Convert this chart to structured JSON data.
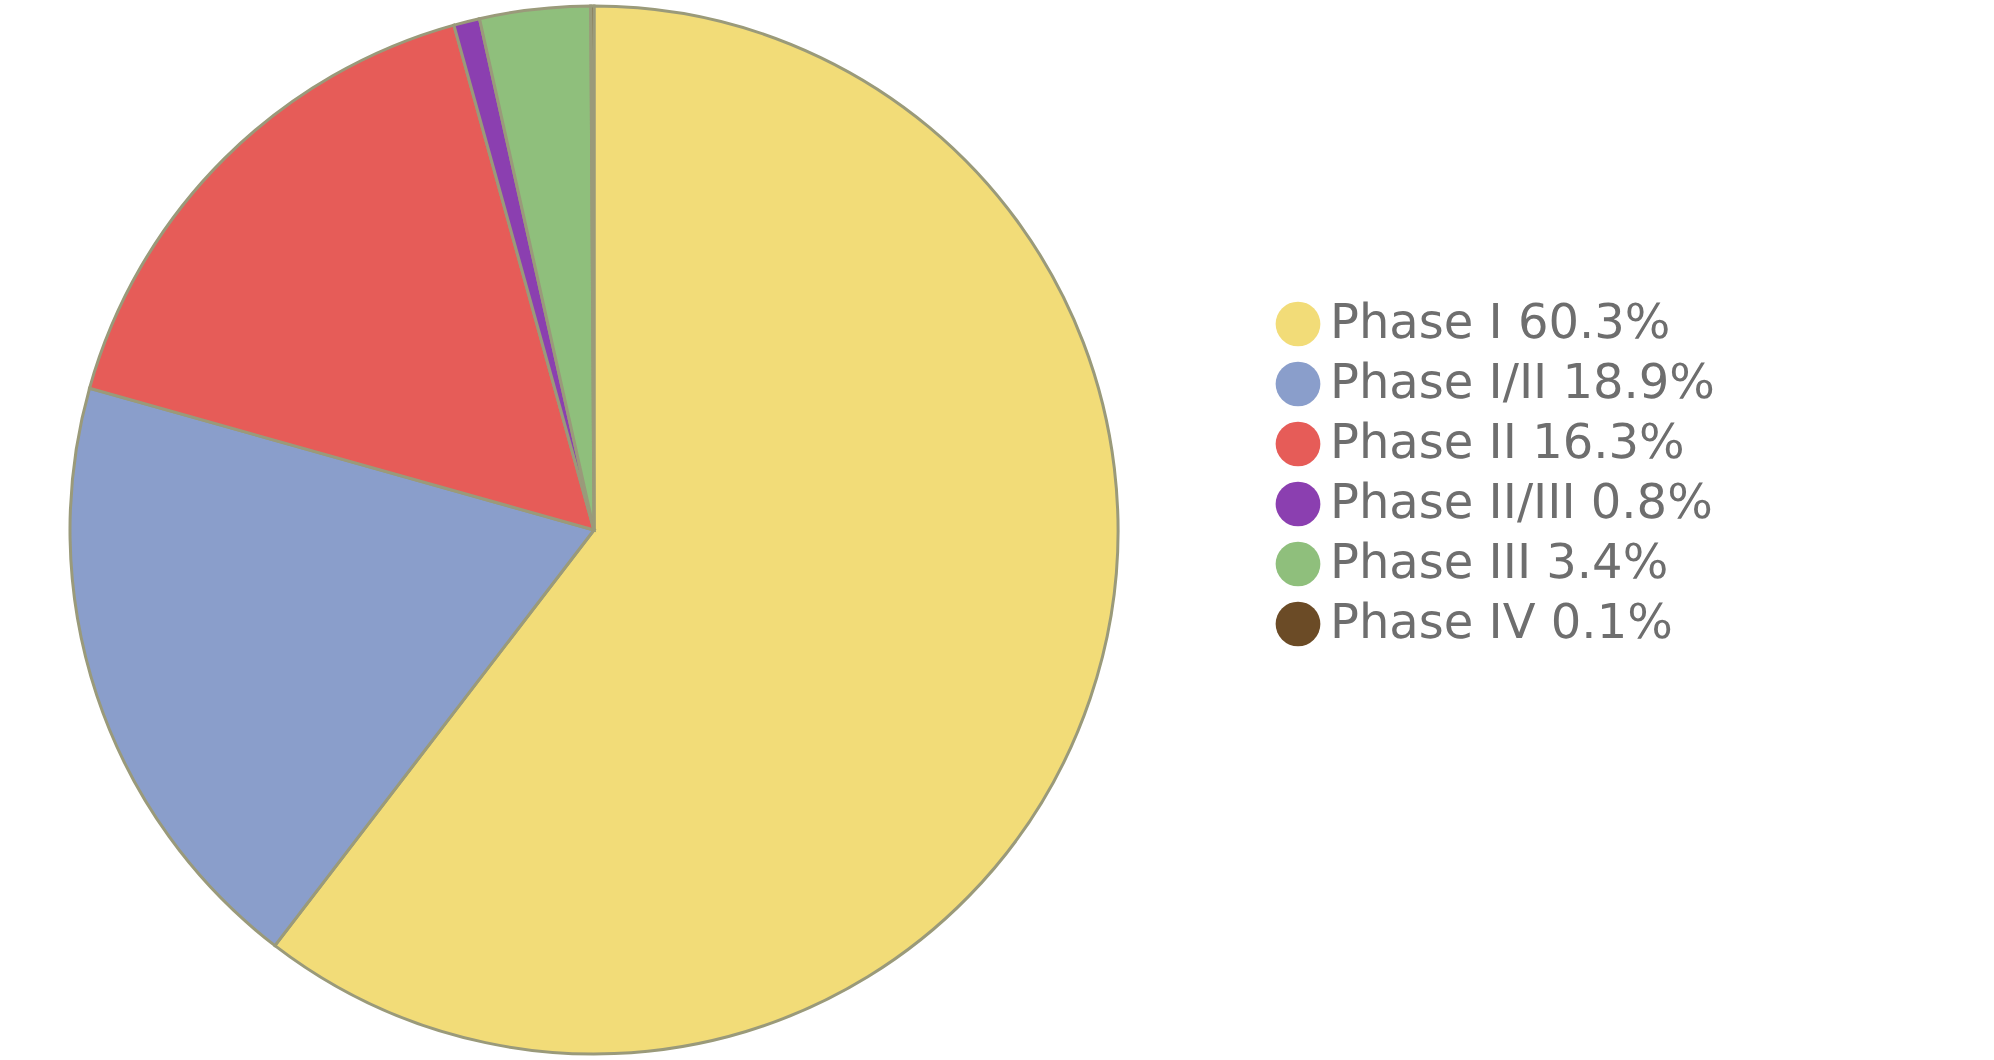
{
  "chart_data": {
    "type": "pie",
    "categories": [
      "Phase I",
      "Phase I/II",
      "Phase II",
      "Phase II/III",
      "Phase III",
      "Phase IV"
    ],
    "values": [
      60.3,
      18.9,
      16.3,
      0.8,
      3.4,
      0.1
    ],
    "value_labels": [
      "60.3%",
      "18.9%",
      "16.3%",
      "0.8%",
      "3.4%",
      "0.1%"
    ],
    "colors": [
      "#f2dc78",
      "#8a9ecb",
      "#e65c58",
      "#8b3fb0",
      "#8fbf7c",
      "#6b4b26"
    ],
    "legend": "right"
  }
}
